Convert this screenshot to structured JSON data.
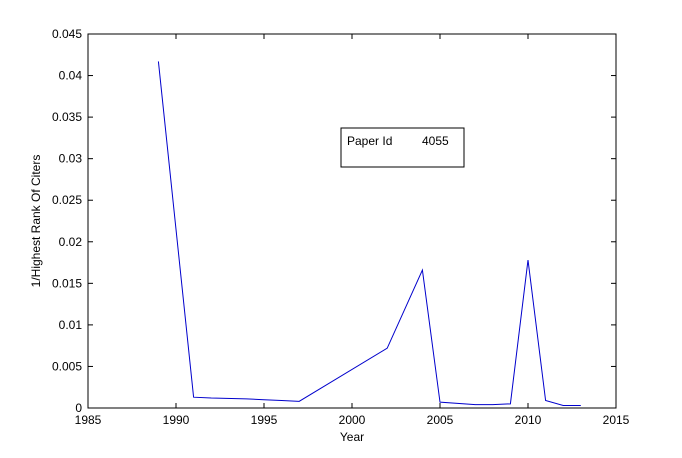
{
  "chart_data": {
    "type": "line",
    "title": "",
    "xlabel": "Year",
    "ylabel": "1/Highest Rank Of Citers",
    "xlim": [
      1985,
      2015
    ],
    "ylim": [
      0,
      0.045
    ],
    "xticks": [
      "1985",
      "1990",
      "1995",
      "2000",
      "2005",
      "2010",
      "2015"
    ],
    "yticks": [
      "0",
      "0.005",
      "0.01",
      "0.015",
      "0.02",
      "0.025",
      "0.03",
      "0.035",
      "0.04",
      "0.045"
    ],
    "grid": false,
    "series": [
      {
        "color": "#0000cc",
        "x": [
          1989,
          1991,
          1992,
          1994,
          1995,
          1996,
          1997,
          2002,
          2004,
          2005,
          2007,
          2008,
          2009,
          2010,
          2011,
          2012,
          2013
        ],
        "y": [
          0.0417,
          0.0013,
          0.0012,
          0.0011,
          0.001,
          0.0009,
          0.0008,
          0.0072,
          0.0166,
          0.0007,
          0.0004,
          0.0004,
          0.0005,
          0.0178,
          0.0009,
          0.0003,
          0.0003
        ]
      }
    ],
    "annotation": {
      "label": "Paper Id",
      "value": "4055"
    }
  }
}
